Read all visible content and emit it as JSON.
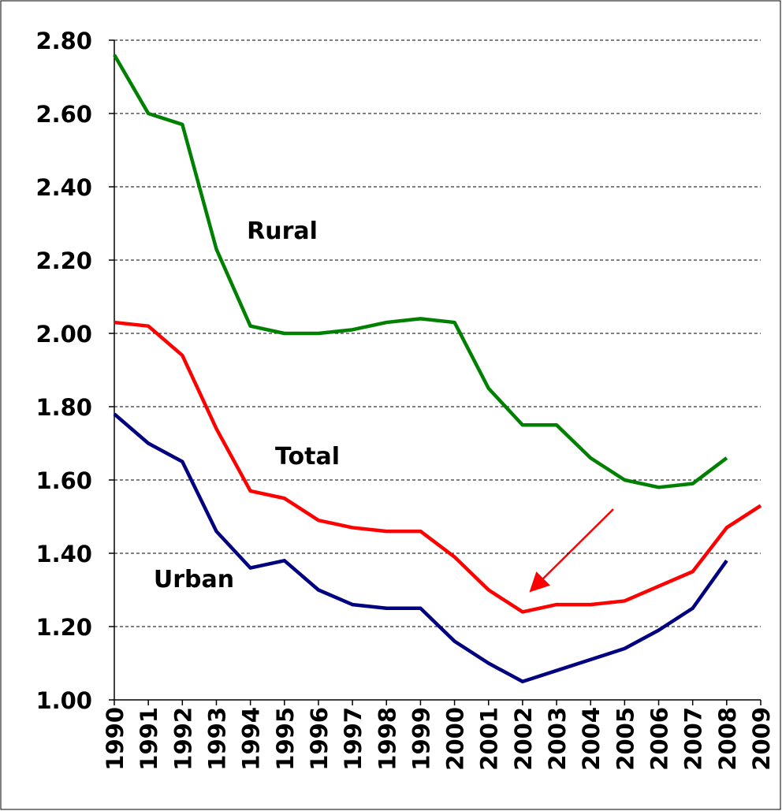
{
  "chart_data": {
    "type": "line",
    "categories": [
      "1990",
      "1991",
      "1992",
      "1993",
      "1994",
      "1995",
      "1996",
      "1997",
      "1998",
      "1999",
      "2000",
      "2001",
      "2002",
      "2003",
      "2004",
      "2005",
      "2006",
      "2007",
      "2008",
      "2009"
    ],
    "series": [
      {
        "name": "Rural",
        "color": "#008000",
        "values": [
          2.76,
          2.6,
          2.57,
          2.23,
          2.02,
          2.0,
          2.0,
          2.01,
          2.03,
          2.04,
          2.03,
          1.85,
          1.75,
          1.75,
          1.66,
          1.6,
          1.58,
          1.59,
          1.66,
          null
        ]
      },
      {
        "name": "Total",
        "color": "#ff0000",
        "values": [
          2.03,
          2.02,
          1.94,
          1.74,
          1.57,
          1.55,
          1.49,
          1.47,
          1.46,
          1.46,
          1.39,
          1.3,
          1.24,
          1.26,
          1.26,
          1.27,
          1.31,
          1.35,
          1.47,
          1.53
        ]
      },
      {
        "name": "Urban",
        "color": "#000080",
        "values": [
          1.78,
          1.7,
          1.65,
          1.46,
          1.36,
          1.38,
          1.3,
          1.26,
          1.25,
          1.25,
          1.16,
          1.1,
          1.05,
          1.08,
          1.11,
          1.14,
          1.19,
          1.25,
          1.38,
          null
        ]
      }
    ],
    "ylim": [
      1.0,
      2.8
    ],
    "yticks": [
      {
        "value": 1.0,
        "label": "1.00"
      },
      {
        "value": 1.2,
        "label": "1.20"
      },
      {
        "value": 1.4,
        "label": "1.40"
      },
      {
        "value": 1.6,
        "label": "1.60"
      },
      {
        "value": 1.8,
        "label": "1.80"
      },
      {
        "value": 2.0,
        "label": "2.00"
      },
      {
        "value": 2.2,
        "label": "2.20"
      },
      {
        "value": 2.4,
        "label": "2.40"
      },
      {
        "value": 2.6,
        "label": "2.60"
      },
      {
        "value": 2.8,
        "label": "2.80"
      }
    ],
    "grid": true
  }
}
